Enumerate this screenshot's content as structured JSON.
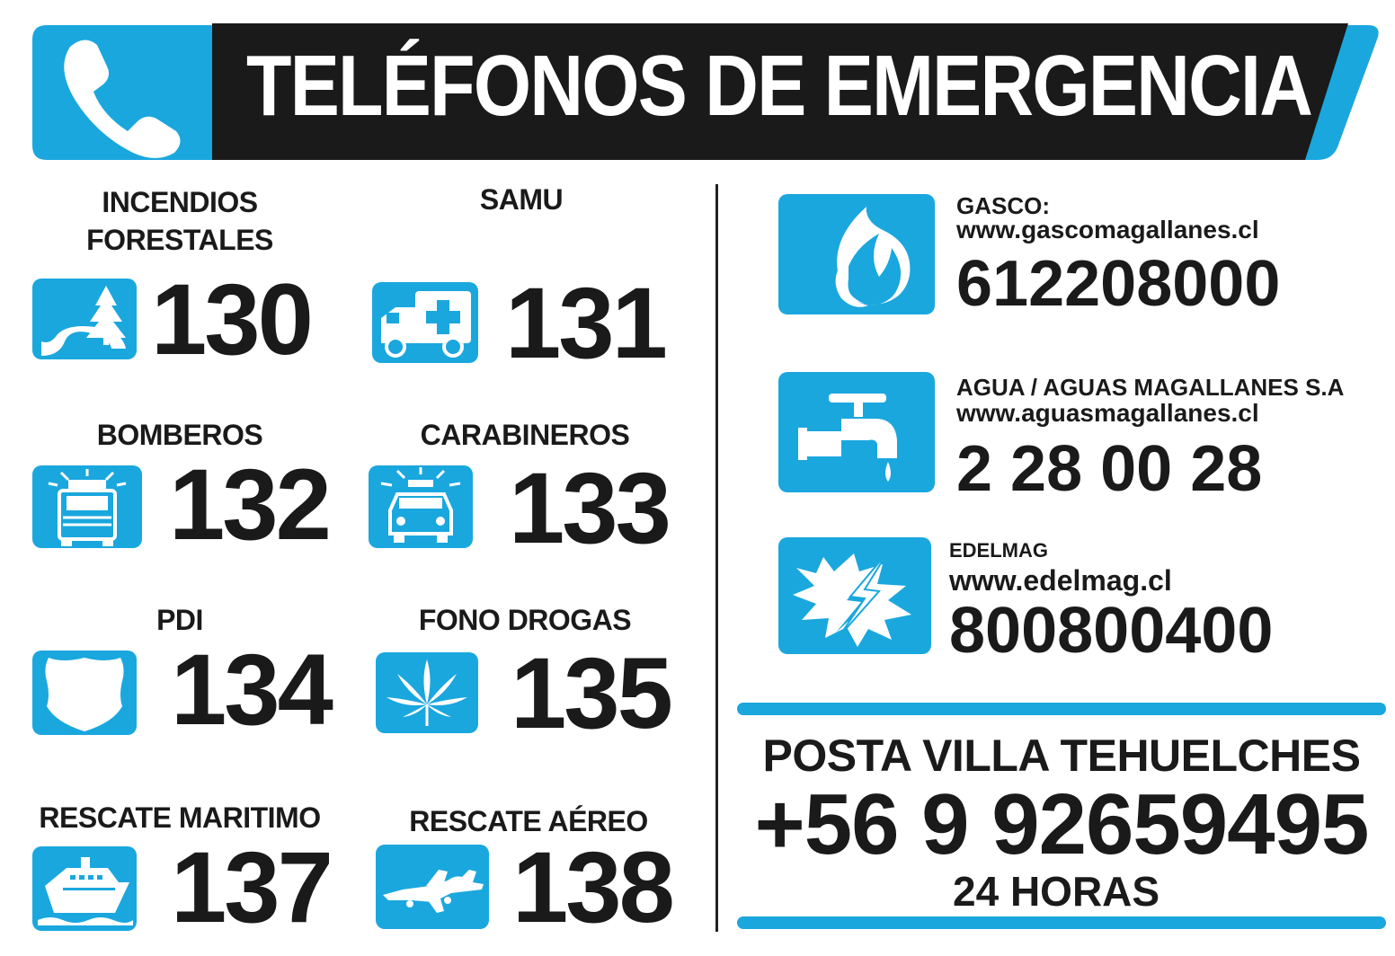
{
  "header": {
    "title": "TELÉFONOS DE EMERGENCIA"
  },
  "services": [
    {
      "label": "INCENDIOS\nFORESTALES",
      "number": "130",
      "icon": "forest-road-icon"
    },
    {
      "label": "SAMU",
      "number": "131",
      "icon": "ambulance-icon"
    },
    {
      "label": "BOMBEROS",
      "number": "132",
      "icon": "fire-truck-icon"
    },
    {
      "label": "CARABINEROS",
      "number": "133",
      "icon": "police-car-icon"
    },
    {
      "label": "PDI",
      "number": "134",
      "icon": "shield-icon"
    },
    {
      "label": "FONO DROGAS",
      "number": "135",
      "icon": "cannabis-leaf-icon"
    },
    {
      "label": "RESCATE MARITIMO",
      "number": "137",
      "icon": "ship-icon"
    },
    {
      "label": "RESCATE AÉREO",
      "number": "138",
      "icon": "airplane-icon"
    }
  ],
  "utilities": [
    {
      "name": "GASCO:",
      "url": "www.gascomagallanes.cl",
      "phone": "612208000",
      "icon": "flame-icon"
    },
    {
      "name": "AGUA / AGUAS MAGALLANES S.A",
      "url": "www.aguasmagallanes.cl",
      "phone": "2 28 00 28",
      "icon": "water-tap-icon"
    },
    {
      "name": "EDELMAG",
      "url": "www.edelmag.cl",
      "phone": "800800400",
      "icon": "lightning-icon"
    }
  ],
  "posta": {
    "title": "POSTA VILLA TEHUELCHES",
    "phone": "+56 9 92659495",
    "hours": "24 HORAS"
  },
  "colors": {
    "accent": "#1aa7de",
    "dark": "#1a1a1a",
    "background": "#ffffff"
  }
}
